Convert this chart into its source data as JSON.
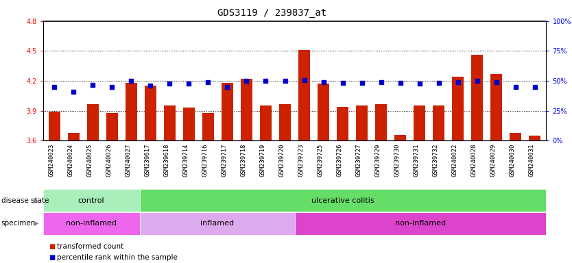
{
  "title": "GDS3119 / 239837_at",
  "samples": [
    "GSM240023",
    "GSM240024",
    "GSM240025",
    "GSM240026",
    "GSM240027",
    "GSM239617",
    "GSM239618",
    "GSM239714",
    "GSM239716",
    "GSM239717",
    "GSM239718",
    "GSM239719",
    "GSM239720",
    "GSM239723",
    "GSM239725",
    "GSM239726",
    "GSM239727",
    "GSM239729",
    "GSM239730",
    "GSM239731",
    "GSM239732",
    "GSM240022",
    "GSM240028",
    "GSM240029",
    "GSM240030",
    "GSM240031"
  ],
  "bar_values": [
    3.89,
    3.68,
    3.97,
    3.88,
    4.18,
    4.15,
    3.95,
    3.93,
    3.88,
    4.18,
    4.22,
    3.95,
    3.97,
    4.51,
    4.17,
    3.94,
    3.95,
    3.97,
    3.66,
    3.95,
    3.95,
    4.24,
    4.46,
    4.27,
    3.68,
    3.65
  ],
  "dot_values": [
    4.14,
    4.09,
    4.16,
    4.14,
    4.2,
    4.15,
    4.17,
    4.17,
    4.19,
    4.14,
    4.2,
    4.2,
    4.2,
    4.21,
    4.19,
    4.18,
    4.18,
    4.19,
    4.18,
    4.17,
    4.18,
    4.19,
    4.2,
    4.19,
    4.14,
    4.14
  ],
  "ylim_left": [
    3.6,
    4.8
  ],
  "yticks_left": [
    3.6,
    3.9,
    4.2,
    4.5,
    4.8
  ],
  "yticks_right": [
    0,
    25,
    50,
    75,
    100
  ],
  "bar_color": "#cc2200",
  "dot_color": "#0000cc",
  "disease_state_groups": [
    {
      "label": "control",
      "start": 0,
      "end": 5,
      "color": "#aaeebb"
    },
    {
      "label": "ulcerative colitis",
      "start": 5,
      "end": 26,
      "color": "#66dd66"
    }
  ],
  "specimen_groups": [
    {
      "label": "non-inflamed",
      "start": 0,
      "end": 5,
      "color": "#ee66ee"
    },
    {
      "label": "inflamed",
      "start": 5,
      "end": 13,
      "color": "#ddaaee"
    },
    {
      "label": "non-inflamed",
      "start": 13,
      "end": 26,
      "color": "#dd44cc"
    }
  ],
  "legend_items": [
    {
      "label": "transformed count",
      "color": "#cc2200"
    },
    {
      "label": "percentile rank within the sample",
      "color": "#0000cc"
    }
  ],
  "title_fontsize": 10,
  "tick_fontsize": 7,
  "bar_width": 0.6,
  "xlabel_bg": "#d8d8d8"
}
